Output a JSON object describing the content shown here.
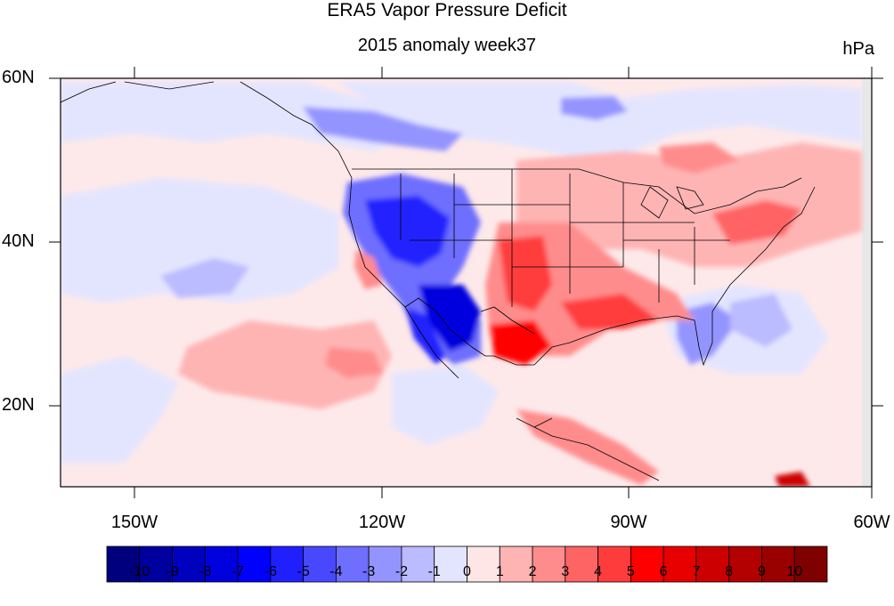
{
  "title": "ERA5 Vapor Pressure Deficit",
  "subtitle": "2015 anomaly week37",
  "units": "hPa",
  "map": {
    "lon_range": [
      -160,
      -60
    ],
    "lat_range": [
      10,
      60
    ],
    "lat_labels": [
      "60N",
      "40N",
      "20N"
    ],
    "lon_labels": [
      "150W",
      "120W",
      "90W",
      "60W"
    ],
    "projection": "cylindrical-equidistant",
    "features": [
      "coastlines",
      "us-state-boundaries",
      "canada-borders",
      "mexico-border"
    ]
  },
  "colorbar": {
    "labels": [
      "-10",
      "-9",
      "-8",
      "-7",
      "-6",
      "-5",
      "-4",
      "-3",
      "-2",
      "-1",
      "0",
      "1",
      "2",
      "3",
      "4",
      "5",
      "6",
      "7",
      "8",
      "9",
      "10"
    ],
    "colors": [
      "#00007f",
      "#00009f",
      "#0000bf",
      "#0000df",
      "#0000ff",
      "#2020ff",
      "#4848ff",
      "#6e6eff",
      "#9494ff",
      "#bbbbff",
      "#e3e5ff",
      "#ffe6e6",
      "#ffb4b4",
      "#ff8c8c",
      "#ff6464",
      "#ff3c3c",
      "#ff0000",
      "#e60000",
      "#cc0000",
      "#b30000",
      "#990000",
      "#7f0000"
    ]
  },
  "anomaly_regions": [
    {
      "region": "Western US / Great Basin",
      "sign": "negative",
      "approx_value": -6
    },
    {
      "region": "Baja California",
      "sign": "negative",
      "approx_value": -5
    },
    {
      "region": "Southern Plains / Texas",
      "sign": "positive",
      "approx_value": 6
    },
    {
      "region": "Northeast US",
      "sign": "positive",
      "approx_value": 4
    },
    {
      "region": "Eastern Pacific subtropics",
      "sign": "positive",
      "approx_value": 3
    },
    {
      "region": "Florida",
      "sign": "negative",
      "approx_value": -3
    }
  ]
}
